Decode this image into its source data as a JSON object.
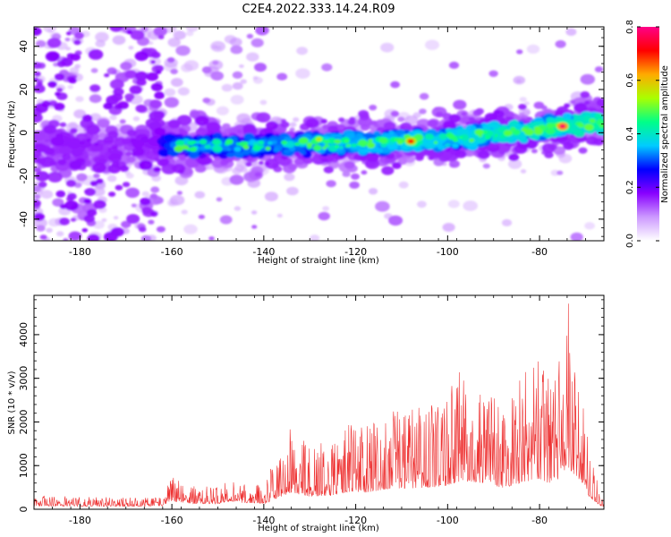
{
  "chart_data": [
    {
      "type": "heatmap",
      "title": "C2E4.2022.333.14.24.R09",
      "xlabel": "Height of straight line (km)",
      "ylabel": "Frequency (Hz)",
      "xlim": [
        -190,
        -66
      ],
      "ylim": [
        -50,
        49
      ],
      "x_ticks": [
        -180,
        -160,
        -140,
        -120,
        -100,
        -80
      ],
      "y_ticks": [
        -40,
        -20,
        0,
        20,
        40
      ],
      "grid": false,
      "colorbar": {
        "label": "Normalized spectral amplitude",
        "range": [
          0,
          0.8
        ],
        "ticks": [
          "0.0",
          "0.2",
          "0.4",
          "0.6",
          "0.8"
        ],
        "colormap": [
          "#ffffff",
          "#cc99ff",
          "#8800ff",
          "#0000ff",
          "#00ccff",
          "#00ff88",
          "#aaff00",
          "#ffaa00",
          "#ff0000",
          "#ff0088"
        ]
      },
      "ridge_center_hz": {
        "x": [
          -185,
          -160,
          -140,
          -120,
          -100,
          -80,
          -67
        ],
        "y": [
          -8,
          -6,
          -6,
          -5,
          -3,
          2,
          5
        ]
      },
      "peak_amplitude": [
        {
          "x": -75,
          "y": 3,
          "value": 0.78
        },
        {
          "x": -108,
          "y": -4,
          "value": 0.7
        },
        {
          "x": -128,
          "y": -3,
          "value": 0.55
        }
      ]
    },
    {
      "type": "line",
      "xlabel": "Height of straight line (km)",
      "ylabel": "SNR (10 * v/v)",
      "xlim": [
        -190,
        -66
      ],
      "ylim": [
        0,
        4900
      ],
      "x_ticks": [
        -180,
        -160,
        -140,
        -120,
        -100,
        -80
      ],
      "y_ticks": [
        0,
        1000,
        2000,
        3000,
        4000
      ],
      "color": "#ee3333",
      "envelope": {
        "x": [
          -190,
          -180,
          -170,
          -162,
          -160,
          -155,
          -150,
          -147,
          -145,
          -140,
          -137,
          -134,
          -130,
          -125,
          -121,
          -118,
          -112,
          -107,
          -101,
          -97,
          -92,
          -88,
          -84,
          -80,
          -77,
          -74,
          -71,
          -69,
          -67,
          -66
        ],
        "y": [
          300,
          280,
          250,
          300,
          700,
          500,
          500,
          750,
          600,
          550,
          1300,
          1900,
          1450,
          1600,
          2050,
          1900,
          2400,
          2400,
          2600,
          3250,
          2950,
          2400,
          3050,
          3500,
          2700,
          4900,
          3200,
          1300,
          500,
          200
        ]
      }
    }
  ]
}
